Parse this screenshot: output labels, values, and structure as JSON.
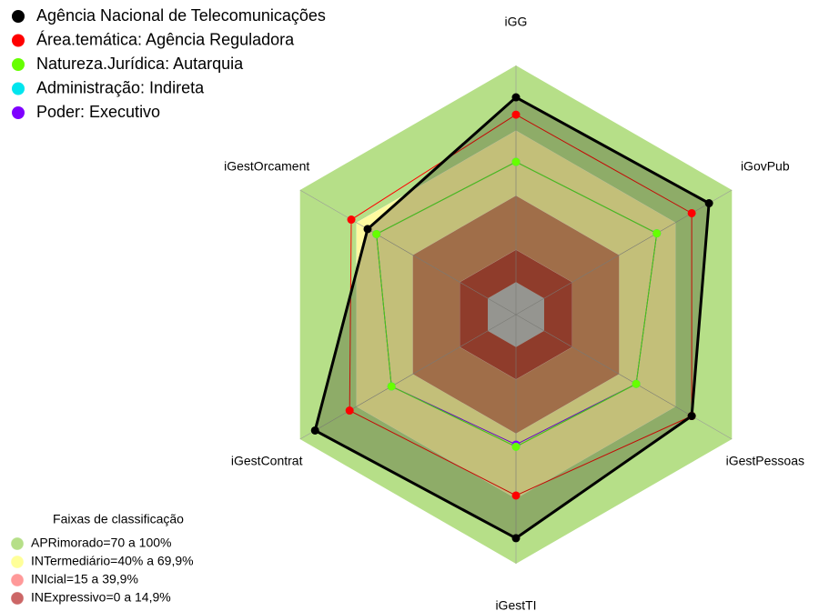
{
  "chart_data": {
    "type": "radar",
    "axes": [
      "iGG",
      "iGovPub",
      "iGestPessoas",
      "iGestTI",
      "iGestContrat",
      "iGestOrcament"
    ],
    "rlim": [
      -15,
      100
    ],
    "series": [
      {
        "name": "Agência Nacional de Telecomunicações",
        "color": "#000000",
        "values": [
          85.3,
          87.8,
          78.6,
          88.2,
          92,
          64
        ]
      },
      {
        "name": "Área.temática: Agência Reguladora",
        "color": "#ff0000",
        "values": [
          77.3,
          78.6,
          78.6,
          68.5,
          73.6,
          72.7
        ]
      },
      {
        "name": "Natureza.Jurídica: Autarquia",
        "color": "#66ff00",
        "values": [
          55.5,
          60,
          49,
          46,
          51.3,
          59.3
        ]
      },
      {
        "name": "Administração: Indireta",
        "color": "#00e5ee",
        "values": [
          55.5,
          60,
          49,
          46,
          51.3,
          59.3
        ]
      },
      {
        "name": "Poder: Executivo",
        "color": "#7f00ff",
        "values": [
          55.5,
          60,
          49,
          45,
          51.3,
          59.3
        ]
      }
    ],
    "bands_title": "Faixas de classificação",
    "bands": [
      {
        "label": "APRimorado=70 a 100%",
        "from": 70,
        "to": 100,
        "color": "#b6df88"
      },
      {
        "label": "INTermediário=40% a 69,9%",
        "from": 40,
        "to": 69.9,
        "color": "#ffff99"
      },
      {
        "label": "INIcial=15 a 39,9%",
        "from": 15,
        "to": 39.9,
        "color": "#ff9999"
      },
      {
        "label": "INExpressivo=0 a 14,9%",
        "from": 0,
        "to": 14.9,
        "color": "#cc6666"
      }
    ]
  }
}
